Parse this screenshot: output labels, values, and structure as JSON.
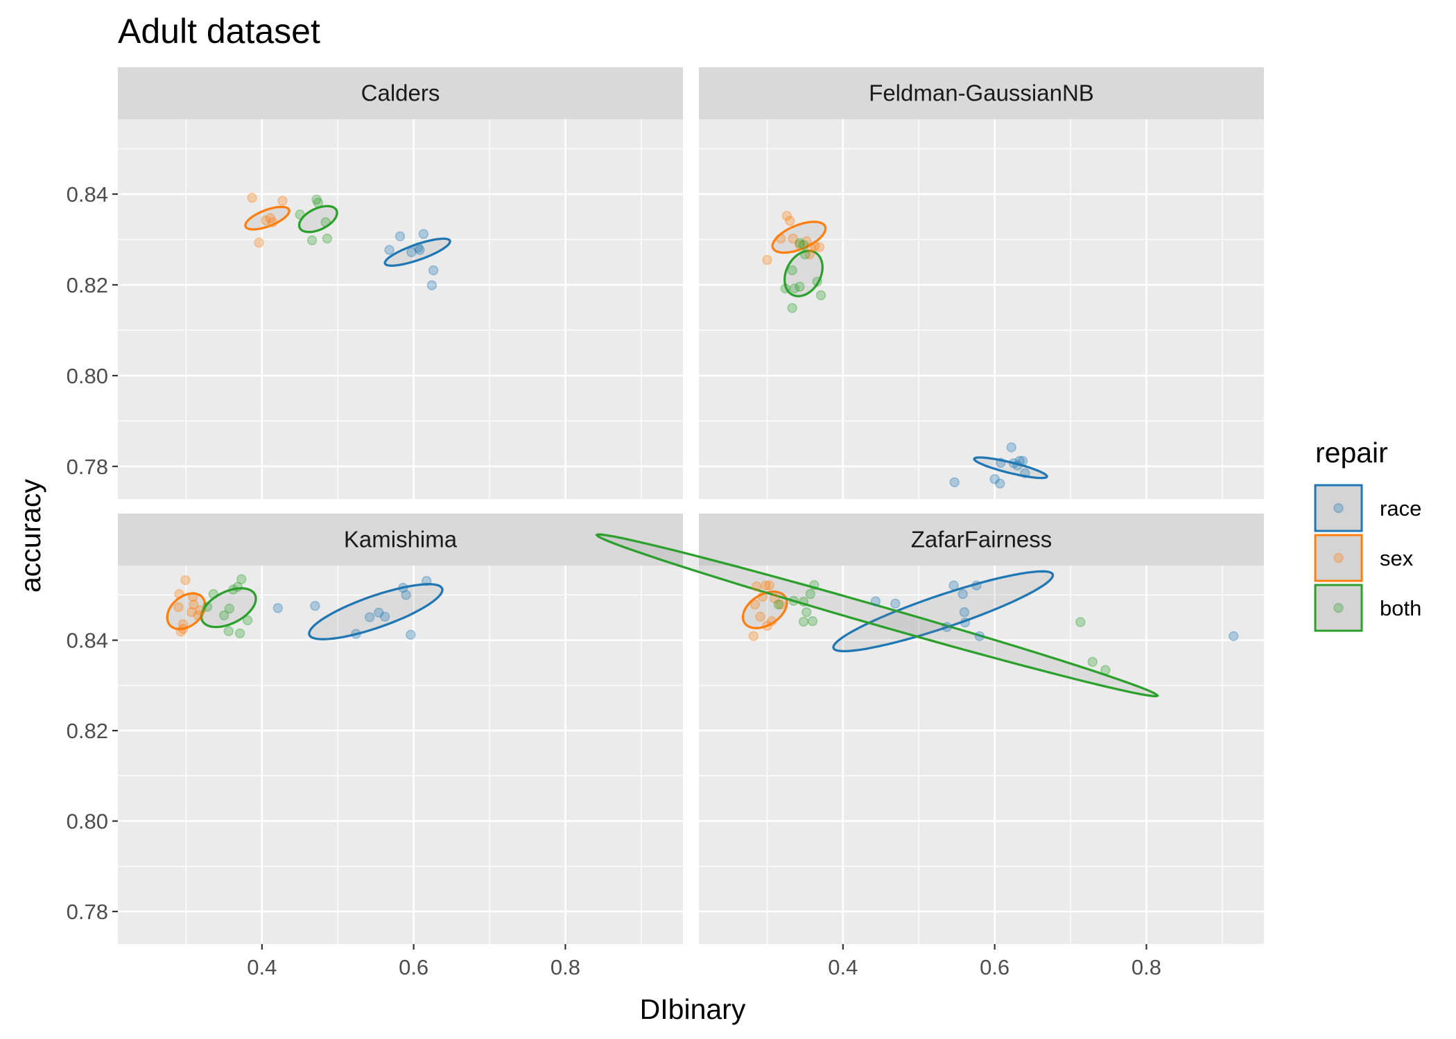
{
  "chart_data": {
    "type": "scatter",
    "title": "Adult dataset",
    "xlabel": "DIbinary",
    "ylabel": "accuracy",
    "grid": true,
    "facet_layout": "2x2",
    "panels": [
      "Calders",
      "Feldman-GaussianNB",
      "Kamishima",
      "ZafarFairness"
    ],
    "xlim": [
      0.21,
      0.955
    ],
    "xticks": [
      0.4,
      0.6,
      0.8
    ],
    "xtick_labels": [
      "0.4",
      "0.6",
      "0.8"
    ],
    "ylim": [
      0.7728,
      0.8565
    ],
    "yticks": [
      0.78,
      0.8,
      0.82,
      0.84
    ],
    "ytick_labels": [
      "0.78",
      "0.80",
      "0.82",
      "0.84"
    ],
    "colors": {
      "race": "#1f77b4",
      "sex": "#ff7f0e",
      "both": "#2ca02c"
    },
    "legend": {
      "title": "repair",
      "position": "right",
      "entries": [
        "race",
        "sex",
        "both"
      ]
    },
    "series": [
      {
        "panel": "Calders",
        "name": "race",
        "points": [
          [
            0.568,
            0.8277
          ],
          [
            0.582,
            0.8307
          ],
          [
            0.597,
            0.8272
          ],
          [
            0.606,
            0.8282
          ],
          [
            0.608,
            0.8277
          ],
          [
            0.613,
            0.8312
          ],
          [
            0.626,
            0.8232
          ],
          [
            0.624,
            0.8199
          ]
        ],
        "ellipse": {
          "cx": 0.605,
          "cy": 0.8272,
          "rx": 0.043,
          "ry": 0.0018,
          "angle": 0.055
        }
      },
      {
        "panel": "Calders",
        "name": "sex",
        "points": [
          [
            0.387,
            0.8392
          ],
          [
            0.396,
            0.8293
          ],
          [
            0.405,
            0.8342
          ],
          [
            0.411,
            0.8347
          ],
          [
            0.414,
            0.8338
          ],
          [
            0.427,
            0.8385
          ]
        ],
        "ellipse": {
          "cx": 0.407,
          "cy": 0.8347,
          "rx": 0.029,
          "ry": 0.0019,
          "angle": 0.055
        }
      },
      {
        "panel": "Calders",
        "name": "both",
        "points": [
          [
            0.45,
            0.8355
          ],
          [
            0.466,
            0.8298
          ],
          [
            0.472,
            0.8388
          ],
          [
            0.474,
            0.8381
          ],
          [
            0.484,
            0.8338
          ],
          [
            0.486,
            0.8302
          ]
        ],
        "ellipse": {
          "cx": 0.474,
          "cy": 0.8345,
          "rx": 0.025,
          "ry": 0.0025,
          "angle": 0.055
        }
      },
      {
        "panel": "Feldman-GaussianNB",
        "name": "race",
        "points": [
          [
            0.547,
            0.7765
          ],
          [
            0.6,
            0.7772
          ],
          [
            0.607,
            0.7762
          ],
          [
            0.608,
            0.7808
          ],
          [
            0.622,
            0.7842
          ],
          [
            0.625,
            0.7807
          ],
          [
            0.63,
            0.7802
          ],
          [
            0.633,
            0.7812
          ],
          [
            0.637,
            0.7812
          ],
          [
            0.64,
            0.7785
          ]
        ],
        "ellipse": {
          "cx": 0.621,
          "cy": 0.7797,
          "rx": 0.048,
          "ry": 0.0012,
          "angle": -0.04
        }
      },
      {
        "panel": "Feldman-GaussianNB",
        "name": "sex",
        "points": [
          [
            0.3,
            0.8255
          ],
          [
            0.318,
            0.8302
          ],
          [
            0.326,
            0.8352
          ],
          [
            0.33,
            0.8341
          ],
          [
            0.334,
            0.8302
          ],
          [
            0.343,
            0.8288
          ],
          [
            0.352,
            0.8296
          ],
          [
            0.356,
            0.8267
          ],
          [
            0.358,
            0.8282
          ],
          [
            0.363,
            0.8285
          ],
          [
            0.369,
            0.8283
          ]
        ],
        "ellipse": {
          "cx": 0.342,
          "cy": 0.8305,
          "rx": 0.035,
          "ry": 0.0028,
          "angle": 0.055
        }
      },
      {
        "panel": "Feldman-GaussianNB",
        "name": "both",
        "points": [
          [
            0.324,
            0.8192
          ],
          [
            0.333,
            0.8149
          ],
          [
            0.333,
            0.8232
          ],
          [
            0.336,
            0.8192
          ],
          [
            0.343,
            0.8196
          ],
          [
            0.343,
            0.8292
          ],
          [
            0.348,
            0.8288
          ],
          [
            0.35,
            0.8267
          ],
          [
            0.366,
            0.8207
          ],
          [
            0.371,
            0.8177
          ]
        ],
        "ellipse": {
          "cx": 0.348,
          "cy": 0.8225,
          "rx": 0.025,
          "ry": 0.0048,
          "angle": 0.055
        }
      },
      {
        "panel": "Kamishima",
        "name": "race",
        "points": [
          [
            0.421,
            0.8471
          ],
          [
            0.47,
            0.8476
          ],
          [
            0.524,
            0.8414
          ],
          [
            0.542,
            0.8451
          ],
          [
            0.554,
            0.8461
          ],
          [
            0.562,
            0.8452
          ],
          [
            0.586,
            0.8516
          ],
          [
            0.59,
            0.85
          ],
          [
            0.596,
            0.8412
          ],
          [
            0.617,
            0.8531
          ]
        ],
        "ellipse": {
          "cx": 0.55,
          "cy": 0.8463,
          "rx": 0.088,
          "ry": 0.0037,
          "angle": 0.055
        }
      },
      {
        "panel": "Kamishima",
        "name": "sex",
        "points": [
          [
            0.29,
            0.8473
          ],
          [
            0.291,
            0.8502
          ],
          [
            0.293,
            0.8419
          ],
          [
            0.296,
            0.8425
          ],
          [
            0.296,
            0.8435
          ],
          [
            0.299,
            0.8533
          ],
          [
            0.307,
            0.8462
          ],
          [
            0.309,
            0.8496
          ],
          [
            0.31,
            0.8479
          ],
          [
            0.316,
            0.8454
          ],
          [
            0.318,
            0.8466
          ]
        ],
        "ellipse": {
          "cx": 0.3,
          "cy": 0.8464,
          "rx": 0.025,
          "ry": 0.0037,
          "angle": 0.055
        }
      },
      {
        "panel": "Kamishima",
        "name": "both",
        "points": [
          [
            0.328,
            0.8474
          ],
          [
            0.336,
            0.8502
          ],
          [
            0.35,
            0.8455
          ],
          [
            0.356,
            0.842
          ],
          [
            0.357,
            0.847
          ],
          [
            0.362,
            0.8512
          ],
          [
            0.368,
            0.8518
          ],
          [
            0.371,
            0.8415
          ],
          [
            0.373,
            0.8535
          ],
          [
            0.381,
            0.8444
          ]
        ],
        "ellipse": {
          "cx": 0.356,
          "cy": 0.8472,
          "rx": 0.036,
          "ry": 0.0038,
          "angle": 0.055
        }
      },
      {
        "panel": "ZafarFairness",
        "name": "race",
        "points": [
          [
            0.443,
            0.8486
          ],
          [
            0.469,
            0.8481
          ],
          [
            0.537,
            0.8429
          ],
          [
            0.546,
            0.8521
          ],
          [
            0.558,
            0.8502
          ],
          [
            0.56,
            0.8462
          ],
          [
            0.561,
            0.8439
          ],
          [
            0.576,
            0.8521
          ],
          [
            0.58,
            0.8409
          ]
        ],
        "ellipse": {
          "cx": 0.532,
          "cy": 0.8464,
          "rx": 0.145,
          "ry": 0.0038,
          "angle": 0.055
        }
      },
      {
        "panel": "ZafarFairness",
        "name": "sex",
        "points": [
          [
            0.282,
            0.8409
          ],
          [
            0.284,
            0.8479
          ],
          [
            0.286,
            0.8519
          ],
          [
            0.291,
            0.8452
          ],
          [
            0.294,
            0.8496
          ],
          [
            0.298,
            0.8521
          ],
          [
            0.3,
            0.8432
          ],
          [
            0.303,
            0.8521
          ],
          [
            0.306,
            0.8442
          ],
          [
            0.31,
            0.8492
          ],
          [
            0.318,
            0.8479
          ]
        ],
        "ellipse": {
          "cx": 0.297,
          "cy": 0.8467,
          "rx": 0.029,
          "ry": 0.0037,
          "angle": 0.055
        }
      },
      {
        "panel": "ZafarFairness",
        "name": "both",
        "points": [
          [
            0.315,
            0.8479
          ],
          [
            0.335,
            0.8487
          ],
          [
            0.348,
            0.8441
          ],
          [
            0.348,
            0.8485
          ],
          [
            0.352,
            0.8462
          ],
          [
            0.357,
            0.8502
          ],
          [
            0.36,
            0.8442
          ],
          [
            0.362,
            0.8522
          ],
          [
            0.713,
            0.844
          ],
          [
            0.729,
            0.8352
          ],
          [
            0.746,
            0.8334
          ]
        ],
        "ellipse": {
          "cx": 0.445,
          "cy": 0.8455,
          "rx": 0.37,
          "ry": 0.0022,
          "angle": -0.048
        }
      },
      {
        "panel": "ZafarFairness",
        "name": "race",
        "points": [
          [
            0.915,
            0.8409
          ]
        ],
        "ellipse": null
      }
    ]
  }
}
